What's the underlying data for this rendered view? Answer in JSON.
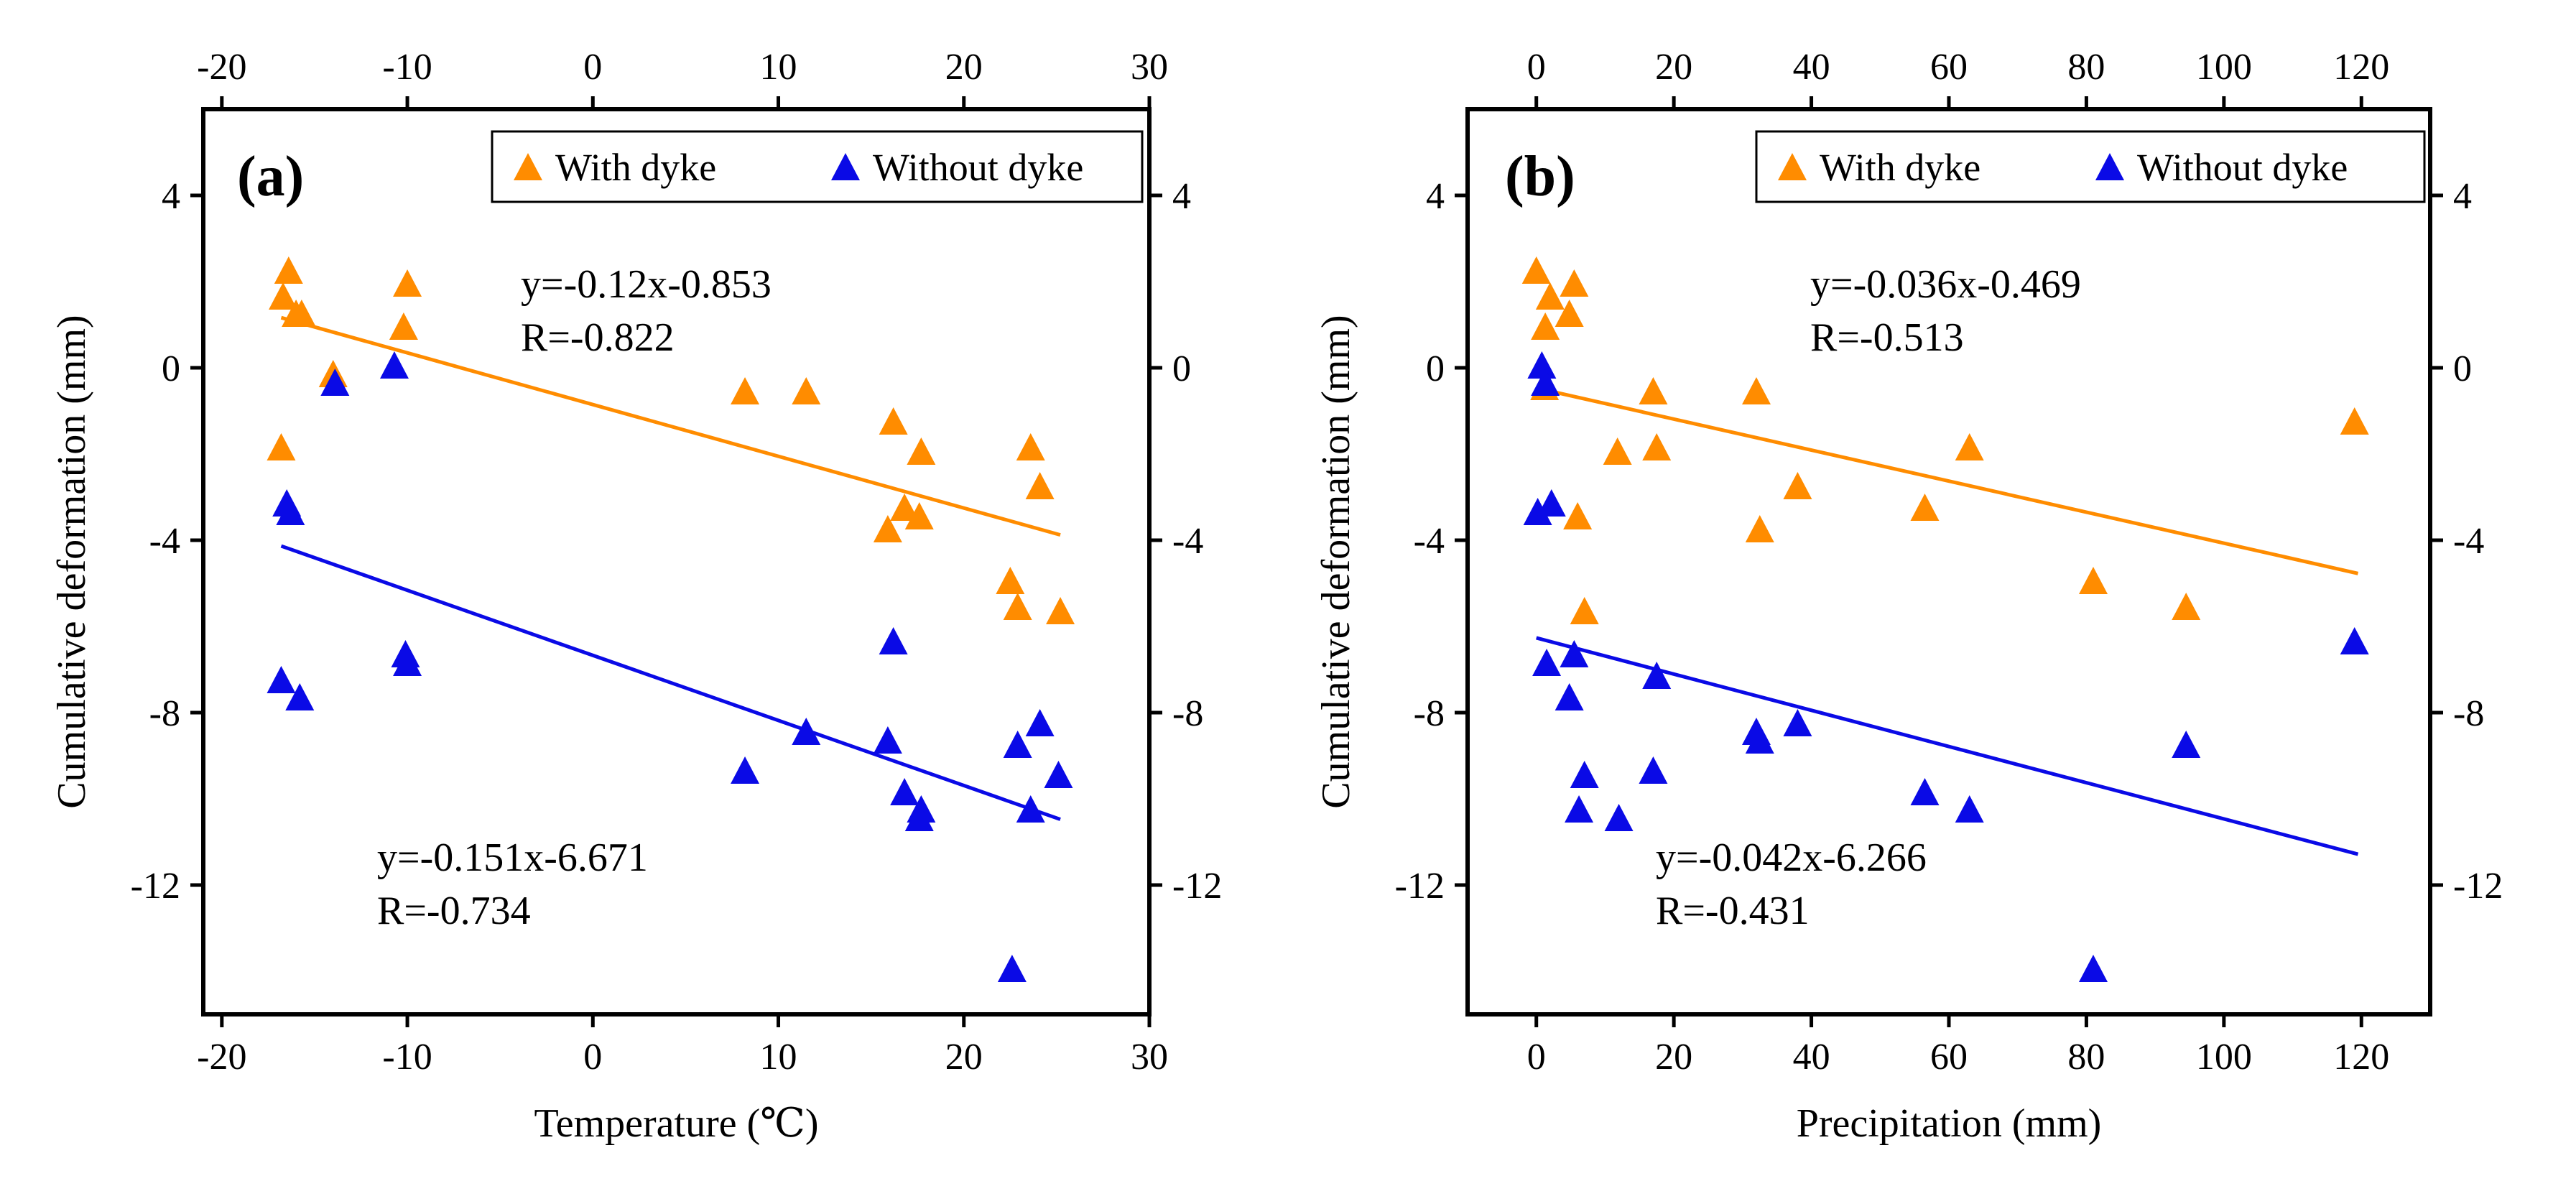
{
  "figure": {
    "colors": {
      "with_dyke": "#FF8C00",
      "without_dyke": "#0A0AE6",
      "axis": "#000000"
    }
  },
  "chart_data": [
    {
      "type": "scatter",
      "panel_label": "(a)",
      "xlabel": "Temperature (℃)",
      "ylabel": "Cumulative deformation (mm)",
      "xlim": [
        -21,
        30
      ],
      "ylim": [
        -15,
        6
      ],
      "xticks": [
        -20,
        -10,
        0,
        10,
        20,
        30
      ],
      "yticks": [
        4,
        0,
        -4,
        -8,
        -12
      ],
      "xtick_labels": [
        "-20",
        "-10",
        "0",
        "10",
        "20",
        "30"
      ],
      "ytick_labels": [
        "4",
        "0",
        "-4",
        "-8",
        "-12"
      ],
      "legend": {
        "position": "top-right",
        "entries": [
          "With dyke",
          "Without dyke"
        ]
      },
      "series": [
        {
          "name": "With dyke",
          "color": "#FF8C00",
          "points": [
            [
              -16.4,
              2.2
            ],
            [
              -16.7,
              1.6
            ],
            [
              -16.0,
              1.2
            ],
            [
              -15.7,
              1.2
            ],
            [
              -14.0,
              -0.2
            ],
            [
              -10.0,
              1.9
            ],
            [
              -10.2,
              0.9
            ],
            [
              -16.8,
              -1.9
            ],
            [
              8.2,
              -0.6
            ],
            [
              11.5,
              -0.6
            ],
            [
              16.2,
              -1.3
            ],
            [
              17.7,
              -2.0
            ],
            [
              16.8,
              -3.3
            ],
            [
              17.6,
              -3.5
            ],
            [
              15.9,
              -3.8
            ],
            [
              23.6,
              -1.9
            ],
            [
              24.1,
              -2.8
            ],
            [
              22.5,
              -5.0
            ],
            [
              22.9,
              -5.6
            ],
            [
              25.2,
              -5.7
            ]
          ],
          "trendline": {
            "slope": -0.12,
            "intercept": -0.853,
            "x_range": [
              -16.8,
              25.2
            ]
          },
          "equation": "y=-0.12x-0.853",
          "r": "R=-0.822"
        },
        {
          "name": "Without dyke",
          "color": "#0A0AE6",
          "points": [
            [
              -13.9,
              -0.4
            ],
            [
              -10.7,
              0.0
            ],
            [
              -16.5,
              -3.2
            ],
            [
              -16.3,
              -3.4
            ],
            [
              -16.8,
              -7.3
            ],
            [
              -15.8,
              -7.7
            ],
            [
              -10.1,
              -6.7
            ],
            [
              -10.0,
              -6.9
            ],
            [
              8.2,
              -9.4
            ],
            [
              11.5,
              -8.5
            ],
            [
              16.2,
              -6.4
            ],
            [
              15.9,
              -8.7
            ],
            [
              16.8,
              -9.9
            ],
            [
              17.7,
              -10.3
            ],
            [
              17.6,
              -10.5
            ],
            [
              22.6,
              -14.0
            ],
            [
              22.9,
              -8.8
            ],
            [
              24.1,
              -8.3
            ],
            [
              23.6,
              -10.3
            ],
            [
              25.1,
              -9.5
            ]
          ],
          "trendline": {
            "slope": -0.151,
            "intercept": -6.671,
            "x_range": [
              -16.8,
              25.2
            ]
          },
          "equation": "y=-0.151x-6.671",
          "r": "R=-0.734"
        }
      ]
    },
    {
      "type": "scatter",
      "panel_label": "(b)",
      "xlabel": "Precipitation (mm)",
      "ylabel": "Cumulative deformation (mm)",
      "xlim": [
        -10,
        130
      ],
      "ylim": [
        -15,
        6
      ],
      "xticks": [
        0,
        20,
        40,
        60,
        80,
        100,
        120
      ],
      "yticks": [
        4,
        0,
        -4,
        -8,
        -12
      ],
      "xtick_labels": [
        "0",
        "20",
        "40",
        "60",
        "80",
        "100",
        "120"
      ],
      "ytick_labels": [
        "4",
        "0",
        "-4",
        "-8",
        "-12"
      ],
      "legend": {
        "position": "top-right",
        "entries": [
          "With dyke",
          "Without dyke"
        ]
      },
      "series": [
        {
          "name": "With dyke",
          "color": "#FF8C00",
          "points": [
            [
              0.0,
              2.2
            ],
            [
              2.0,
              1.6
            ],
            [
              1.3,
              0.9
            ],
            [
              5.5,
              1.9
            ],
            [
              4.8,
              1.2
            ],
            [
              1.2,
              -0.5
            ],
            [
              17.0,
              -0.6
            ],
            [
              32.0,
              -0.6
            ],
            [
              11.8,
              -2.0
            ],
            [
              17.5,
              -1.9
            ],
            [
              6.0,
              -3.5
            ],
            [
              32.5,
              -3.8
            ],
            [
              38.0,
              -2.8
            ],
            [
              56.5,
              -3.3
            ],
            [
              63.0,
              -1.9
            ],
            [
              7.0,
              -5.7
            ],
            [
              81.0,
              -5.0
            ],
            [
              94.5,
              -5.6
            ],
            [
              119.0,
              -1.3
            ]
          ],
          "trendline": {
            "slope": -0.036,
            "intercept": -0.469,
            "x_range": [
              0,
              119.5
            ]
          },
          "equation": "y=-0.036x-0.469",
          "r": "R=-0.513"
        },
        {
          "name": "Without dyke",
          "color": "#0A0AE6",
          "points": [
            [
              0.8,
              0.0
            ],
            [
              1.3,
              -0.4
            ],
            [
              0.2,
              -3.4
            ],
            [
              2.2,
              -3.2
            ],
            [
              1.5,
              -6.9
            ],
            [
              5.5,
              -6.7
            ],
            [
              4.8,
              -7.7
            ],
            [
              7.0,
              -9.5
            ],
            [
              6.2,
              -10.3
            ],
            [
              12.0,
              -10.5
            ],
            [
              17.5,
              -7.2
            ],
            [
              17.0,
              -9.4
            ],
            [
              32.0,
              -8.5
            ],
            [
              32.5,
              -8.7
            ],
            [
              38.0,
              -8.3
            ],
            [
              56.5,
              -9.9
            ],
            [
              63.0,
              -10.3
            ],
            [
              81.0,
              -14.0
            ],
            [
              94.5,
              -8.8
            ],
            [
              119.0,
              -6.4
            ]
          ],
          "trendline": {
            "slope": -0.042,
            "intercept": -6.266,
            "x_range": [
              0,
              119.5
            ]
          },
          "equation": "y=-0.042x-6.266",
          "r": "R=-0.431"
        }
      ]
    }
  ]
}
